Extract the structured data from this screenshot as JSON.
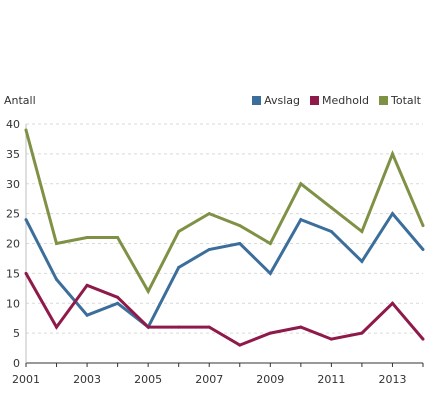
{
  "chart_data": {
    "type": "line",
    "ylabel": "Antall",
    "xlabel": "",
    "title": "",
    "x": [
      2001,
      2002,
      2003,
      2004,
      2005,
      2006,
      2007,
      2008,
      2009,
      2010,
      2011,
      2012,
      2013,
      2014
    ],
    "x_tick_labels": [
      "2001",
      "2003",
      "2005",
      "2007",
      "2009",
      "2011",
      "2013"
    ],
    "x_tick_values": [
      2001,
      2003,
      2005,
      2007,
      2009,
      2011,
      2013
    ],
    "y_ticks": [
      0,
      5,
      10,
      15,
      20,
      25,
      30,
      35,
      40
    ],
    "ylim": [
      0,
      40
    ],
    "xlim": [
      2001,
      2014
    ],
    "grid": true,
    "legend_position": "top-right",
    "series": [
      {
        "name": "Avslag",
        "color": "#3c6e9b",
        "values": [
          24,
          14,
          8,
          10,
          6,
          16,
          19,
          20,
          15,
          24,
          22,
          17,
          25,
          19
        ]
      },
      {
        "name": "Medhold",
        "color": "#8e1a4a",
        "values": [
          15,
          6,
          13,
          11,
          6,
          6,
          6,
          3,
          5,
          6,
          4,
          5,
          10,
          4
        ]
      },
      {
        "name": "Totalt",
        "color": "#7f9145",
        "values": [
          39,
          20,
          21,
          21,
          12,
          22,
          25,
          23,
          20,
          30,
          26,
          22,
          35,
          23
        ]
      }
    ]
  }
}
